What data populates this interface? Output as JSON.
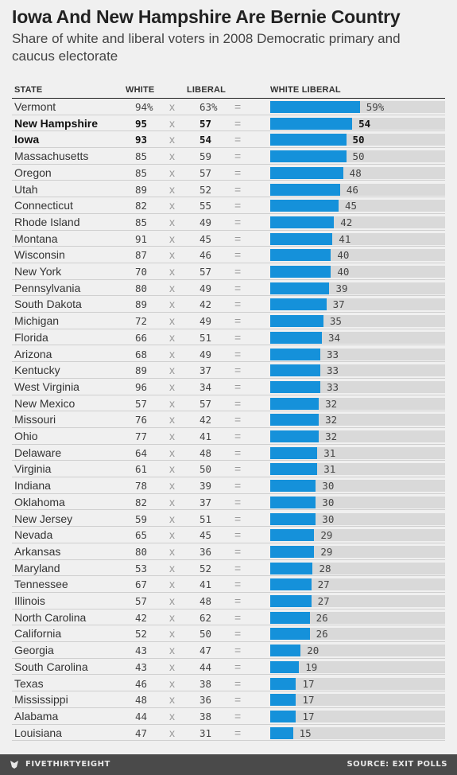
{
  "header": {
    "title": "Iowa And New Hampshire Are Bernie Country",
    "subtitle": "Share of white and liberal voters in 2008 Democratic primary and caucus electorate"
  },
  "columns": {
    "state": "STATE",
    "white": "WHITE",
    "liberal": "LIBERAL",
    "white_liberal": "WHITE LIBERAL"
  },
  "symbols": {
    "times": "x",
    "equals": "="
  },
  "footer": {
    "brand": "FIVETHIRTYEIGHT",
    "source": "SOURCE: EXIT POLLS"
  },
  "colors": {
    "bar": "#1591da",
    "track": "#d9d9d9",
    "background": "#f0f0f0"
  },
  "chart_data": {
    "type": "bar",
    "title": "Iowa And New Hampshire Are Bernie Country",
    "subtitle": "Share of white and liberal voters in 2008 Democratic primary and caucus electorate",
    "xlim": [
      0,
      100
    ],
    "highlighted": [
      "New Hampshire",
      "Iowa"
    ],
    "rows": [
      {
        "state": "Vermont",
        "white": "94%",
        "liberal": "63%",
        "white_liberal": "59%",
        "value": 59
      },
      {
        "state": "New Hampshire",
        "white": "95",
        "liberal": "57",
        "white_liberal": "54",
        "value": 54
      },
      {
        "state": "Iowa",
        "white": "93",
        "liberal": "54",
        "white_liberal": "50",
        "value": 50
      },
      {
        "state": "Massachusetts",
        "white": "85",
        "liberal": "59",
        "white_liberal": "50",
        "value": 50
      },
      {
        "state": "Oregon",
        "white": "85",
        "liberal": "57",
        "white_liberal": "48",
        "value": 48
      },
      {
        "state": "Utah",
        "white": "89",
        "liberal": "52",
        "white_liberal": "46",
        "value": 46
      },
      {
        "state": "Connecticut",
        "white": "82",
        "liberal": "55",
        "white_liberal": "45",
        "value": 45
      },
      {
        "state": "Rhode Island",
        "white": "85",
        "liberal": "49",
        "white_liberal": "42",
        "value": 42
      },
      {
        "state": "Montana",
        "white": "91",
        "liberal": "45",
        "white_liberal": "41",
        "value": 41
      },
      {
        "state": "Wisconsin",
        "white": "87",
        "liberal": "46",
        "white_liberal": "40",
        "value": 40
      },
      {
        "state": "New York",
        "white": "70",
        "liberal": "57",
        "white_liberal": "40",
        "value": 40
      },
      {
        "state": "Pennsylvania",
        "white": "80",
        "liberal": "49",
        "white_liberal": "39",
        "value": 39
      },
      {
        "state": "South Dakota",
        "white": "89",
        "liberal": "42",
        "white_liberal": "37",
        "value": 37
      },
      {
        "state": "Michigan",
        "white": "72",
        "liberal": "49",
        "white_liberal": "35",
        "value": 35
      },
      {
        "state": "Florida",
        "white": "66",
        "liberal": "51",
        "white_liberal": "34",
        "value": 34
      },
      {
        "state": "Arizona",
        "white": "68",
        "liberal": "49",
        "white_liberal": "33",
        "value": 33
      },
      {
        "state": "Kentucky",
        "white": "89",
        "liberal": "37",
        "white_liberal": "33",
        "value": 33
      },
      {
        "state": "West Virginia",
        "white": "96",
        "liberal": "34",
        "white_liberal": "33",
        "value": 33
      },
      {
        "state": "New Mexico",
        "white": "57",
        "liberal": "57",
        "white_liberal": "32",
        "value": 32
      },
      {
        "state": "Missouri",
        "white": "76",
        "liberal": "42",
        "white_liberal": "32",
        "value": 32
      },
      {
        "state": "Ohio",
        "white": "77",
        "liberal": "41",
        "white_liberal": "32",
        "value": 32
      },
      {
        "state": "Delaware",
        "white": "64",
        "liberal": "48",
        "white_liberal": "31",
        "value": 31
      },
      {
        "state": "Virginia",
        "white": "61",
        "liberal": "50",
        "white_liberal": "31",
        "value": 31
      },
      {
        "state": "Indiana",
        "white": "78",
        "liberal": "39",
        "white_liberal": "30",
        "value": 30
      },
      {
        "state": "Oklahoma",
        "white": "82",
        "liberal": "37",
        "white_liberal": "30",
        "value": 30
      },
      {
        "state": "New Jersey",
        "white": "59",
        "liberal": "51",
        "white_liberal": "30",
        "value": 30
      },
      {
        "state": "Nevada",
        "white": "65",
        "liberal": "45",
        "white_liberal": "29",
        "value": 29
      },
      {
        "state": "Arkansas",
        "white": "80",
        "liberal": "36",
        "white_liberal": "29",
        "value": 29
      },
      {
        "state": "Maryland",
        "white": "53",
        "liberal": "52",
        "white_liberal": "28",
        "value": 28
      },
      {
        "state": "Tennessee",
        "white": "67",
        "liberal": "41",
        "white_liberal": "27",
        "value": 27
      },
      {
        "state": "Illinois",
        "white": "57",
        "liberal": "48",
        "white_liberal": "27",
        "value": 27
      },
      {
        "state": "North Carolina",
        "white": "42",
        "liberal": "62",
        "white_liberal": "26",
        "value": 26
      },
      {
        "state": "California",
        "white": "52",
        "liberal": "50",
        "white_liberal": "26",
        "value": 26
      },
      {
        "state": "Georgia",
        "white": "43",
        "liberal": "47",
        "white_liberal": "20",
        "value": 20
      },
      {
        "state": "South Carolina",
        "white": "43",
        "liberal": "44",
        "white_liberal": "19",
        "value": 19
      },
      {
        "state": "Texas",
        "white": "46",
        "liberal": "38",
        "white_liberal": "17",
        "value": 17
      },
      {
        "state": "Mississippi",
        "white": "48",
        "liberal": "36",
        "white_liberal": "17",
        "value": 17
      },
      {
        "state": "Alabama",
        "white": "44",
        "liberal": "38",
        "white_liberal": "17",
        "value": 17
      },
      {
        "state": "Louisiana",
        "white": "47",
        "liberal": "31",
        "white_liberal": "15",
        "value": 15
      }
    ]
  }
}
